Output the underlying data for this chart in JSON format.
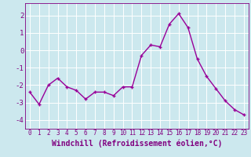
{
  "x": [
    0,
    1,
    2,
    3,
    4,
    5,
    6,
    7,
    8,
    9,
    10,
    11,
    12,
    13,
    14,
    15,
    16,
    17,
    18,
    19,
    20,
    21,
    22,
    23
  ],
  "y": [
    -2.4,
    -3.1,
    -2.0,
    -1.6,
    -2.1,
    -2.3,
    -2.8,
    -2.4,
    -2.4,
    -2.6,
    -2.1,
    -2.1,
    -0.3,
    0.3,
    0.2,
    1.5,
    2.1,
    1.3,
    -0.5,
    -1.5,
    -2.2,
    -2.9,
    -3.4,
    -3.7
  ],
  "line_color": "#990099",
  "marker": "+",
  "markersize": 3,
  "linewidth": 1.0,
  "xlabel": "Windchill (Refroidissement éolien,°C)",
  "xlabel_fontsize": 7,
  "xtick_fontsize": 5.5,
  "ytick_fontsize": 6.5,
  "ylim": [
    -4.5,
    2.7
  ],
  "yticks": [
    -4,
    -3,
    -2,
    -1,
    0,
    1,
    2
  ],
  "bg_color": "#cce8ee",
  "grid_color": "#b0d8e0",
  "tick_color": "#800080",
  "label_color": "#800080",
  "spine_color": "#800080"
}
